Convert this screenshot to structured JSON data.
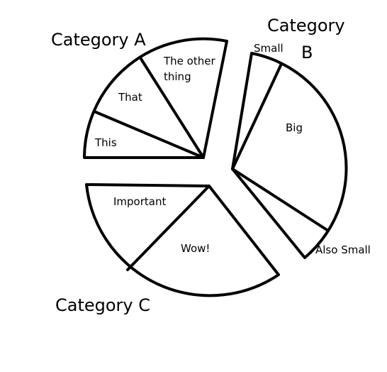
{
  "categories": [
    {
      "name": "Category A",
      "segments": [
        {
          "label": "This"
        },
        {
          "label": "That"
        },
        {
          "label_lines": [
            "The other",
            "thing"
          ]
        }
      ]
    },
    {
      "name_lines": [
        "Category",
        "B"
      ],
      "segments": [
        {
          "label": "Small"
        },
        {
          "label": "Big"
        },
        {
          "label": "Also Small"
        }
      ]
    },
    {
      "name": "Category C",
      "segments": [
        {
          "label": "Important"
        },
        {
          "label": "Wow!"
        }
      ]
    }
  ]
}
